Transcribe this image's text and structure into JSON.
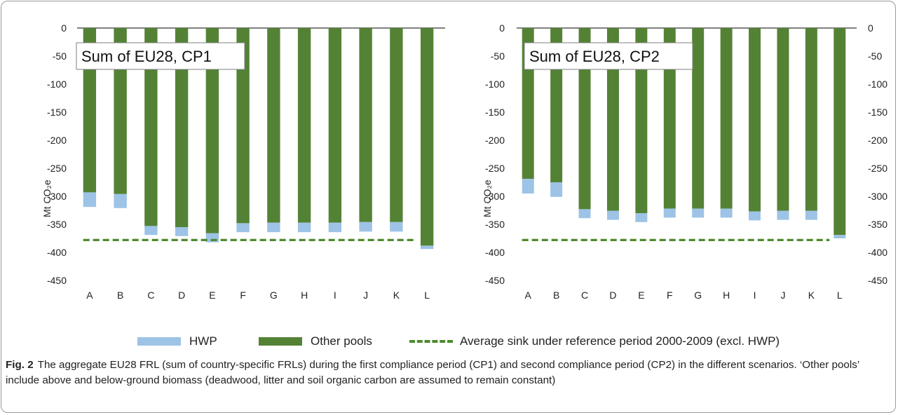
{
  "colors": {
    "hwp": "#9dc3e6",
    "other_pools": "#548235",
    "reference_line": "#4f8a2e",
    "axis": "#000000"
  },
  "legend": {
    "hwp": "HWP",
    "other_pools": "Other pools",
    "reference_line": "Average sink under reference period 2000-2009 (excl. HWP)"
  },
  "caption": {
    "label": "Fig. 2",
    "text": "The aggregate EU28 FRL (sum of country-specific FRLs) during the first compliance period (CP1) and second compliance period (CP2) in the different scenarios. ‘Other pools’ include above and below-ground biomass (deadwood, litter and soil organic carbon are assumed to remain constant)"
  },
  "chart_data": [
    {
      "type": "bar",
      "stacked": true,
      "title": "Sum of EU28, CP1",
      "ylabel": "Mt CO₂e",
      "ylim": [
        -450,
        0
      ],
      "yticks": [
        0,
        -50,
        -100,
        -150,
        -200,
        -250,
        -300,
        -350,
        -400,
        -450
      ],
      "categories": [
        "A",
        "B",
        "C",
        "D",
        "E",
        "F",
        "G",
        "H",
        "I",
        "J",
        "K",
        "L"
      ],
      "series": [
        {
          "name": "Other pools",
          "values": [
            -293,
            -296,
            -353,
            -355,
            -366,
            -348,
            -347,
            -347,
            -347,
            -346,
            -346,
            -388
          ]
        },
        {
          "name": "HWP",
          "values": [
            -26,
            -25,
            -16,
            -16,
            -16,
            -16,
            -17,
            -17,
            -17,
            -17,
            -17,
            -6
          ]
        }
      ],
      "reference_line": {
        "name": "Average sink under reference period 2000-2009 (excl. HWP)",
        "value": -378
      }
    },
    {
      "type": "bar",
      "stacked": true,
      "title": "Sum of EU28, CP2",
      "ylabel": "Mt CO₂e",
      "ylim": [
        -450,
        0
      ],
      "yticks": [
        0,
        -50,
        -100,
        -150,
        -200,
        -250,
        -300,
        -350,
        -400,
        -450
      ],
      "categories": [
        "A",
        "B",
        "C",
        "D",
        "E",
        "F",
        "G",
        "H",
        "I",
        "J",
        "K",
        "L"
      ],
      "series": [
        {
          "name": "Other pools",
          "values": [
            -269,
            -275,
            -323,
            -326,
            -330,
            -322,
            -322,
            -322,
            -327,
            -326,
            -326,
            -369
          ]
        },
        {
          "name": "HWP",
          "values": [
            -26,
            -26,
            -16,
            -16,
            -16,
            -16,
            -16,
            -16,
            -16,
            -16,
            -16,
            -6
          ]
        }
      ],
      "reference_line": {
        "name": "Average sink under reference period 2000-2009 (excl. HWP)",
        "value": -378
      }
    }
  ]
}
